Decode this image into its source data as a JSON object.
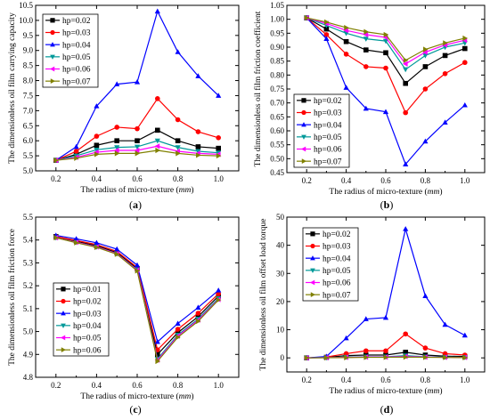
{
  "chart_data": [
    {
      "type": "line",
      "panel_label": "(a)",
      "xlabel": "The radius of micro-texture",
      "xunit": "mm",
      "ylabel": "The dimensionless oil film carrying capacity",
      "xlim": [
        0.1,
        1.1
      ],
      "ylim": [
        5.0,
        10.5
      ],
      "xticks": [
        0.2,
        0.4,
        0.6,
        0.8,
        1.0
      ],
      "yticks": [
        5.0,
        5.5,
        6.0,
        6.5,
        7.0,
        7.5,
        8.0,
        8.5,
        9.0,
        9.5,
        10.0,
        10.5
      ],
      "x": [
        0.2,
        0.3,
        0.4,
        0.5,
        0.6,
        0.7,
        0.8,
        0.9,
        1.0
      ],
      "legend_position": "top-left",
      "series": [
        {
          "name": "hp=0.02",
          "color": "#000000",
          "marker": "square",
          "values": [
            5.35,
            5.55,
            5.85,
            6.0,
            6.0,
            6.35,
            6.0,
            5.8,
            5.75
          ]
        },
        {
          "name": "hp=0.03",
          "color": "#ff0000",
          "marker": "circle",
          "values": [
            5.35,
            5.65,
            6.15,
            6.45,
            6.4,
            7.4,
            6.7,
            6.3,
            6.1
          ]
        },
        {
          "name": "hp=0.04",
          "color": "#0000ff",
          "marker": "triangle-up",
          "values": [
            5.35,
            5.8,
            7.15,
            7.88,
            7.95,
            10.3,
            8.95,
            8.15,
            7.5
          ]
        },
        {
          "name": "hp=0.05",
          "color": "#009999",
          "marker": "triangle-down",
          "values": [
            5.35,
            5.5,
            5.7,
            5.78,
            5.8,
            6.0,
            5.78,
            5.65,
            5.6
          ]
        },
        {
          "name": "hp=0.06",
          "color": "#ff00ff",
          "marker": "triangle-left",
          "values": [
            5.35,
            5.45,
            5.62,
            5.68,
            5.68,
            5.82,
            5.65,
            5.58,
            5.55
          ]
        },
        {
          "name": "hp=0.07",
          "color": "#808000",
          "marker": "triangle-right",
          "values": [
            5.35,
            5.42,
            5.55,
            5.58,
            5.58,
            5.68,
            5.58,
            5.52,
            5.5
          ]
        }
      ]
    },
    {
      "type": "line",
      "panel_label": "(b)",
      "xlabel": "The radius of micro-texture",
      "xunit": "mm",
      "ylabel": "The dimensionless oil film friction coefficient",
      "xlim": [
        0.1,
        1.1
      ],
      "ylim": [
        0.45,
        1.05
      ],
      "xticks": [
        0.2,
        0.4,
        0.6,
        0.8,
        1.0
      ],
      "yticks": [
        0.45,
        0.5,
        0.55,
        0.6,
        0.65,
        0.7,
        0.75,
        0.8,
        0.85,
        0.9,
        0.95,
        1.0,
        1.05
      ],
      "x": [
        0.2,
        0.3,
        0.4,
        0.5,
        0.6,
        0.7,
        0.8,
        0.9,
        1.0
      ],
      "legend_position": "bottom-left",
      "series": [
        {
          "name": "hp=0.02",
          "color": "#000000",
          "marker": "square",
          "values": [
            1.005,
            0.965,
            0.92,
            0.89,
            0.88,
            0.77,
            0.83,
            0.87,
            0.895
          ]
        },
        {
          "name": "hp=0.03",
          "color": "#ff0000",
          "marker": "circle",
          "values": [
            1.005,
            0.945,
            0.875,
            0.83,
            0.825,
            0.665,
            0.75,
            0.805,
            0.845
          ]
        },
        {
          "name": "hp=0.04",
          "color": "#0000ff",
          "marker": "triangle-up",
          "values": [
            1.005,
            0.93,
            0.755,
            0.68,
            0.668,
            0.48,
            0.562,
            0.63,
            0.692
          ]
        },
        {
          "name": "hp=0.05",
          "color": "#009999",
          "marker": "triangle-down",
          "values": [
            1.005,
            0.978,
            0.95,
            0.93,
            0.922,
            0.82,
            0.87,
            0.9,
            0.915
          ]
        },
        {
          "name": "hp=0.06",
          "color": "#ff00ff",
          "marker": "triangle-left",
          "values": [
            1.005,
            0.985,
            0.96,
            0.945,
            0.935,
            0.84,
            0.882,
            0.908,
            0.925
          ]
        },
        {
          "name": "hp=0.07",
          "color": "#808000",
          "marker": "triangle-right",
          "values": [
            1.005,
            0.99,
            0.97,
            0.955,
            0.945,
            0.853,
            0.892,
            0.915,
            0.932
          ]
        }
      ]
    },
    {
      "type": "line",
      "panel_label": "(c)",
      "xlabel": "The radius of micro-texture",
      "xunit": "mm",
      "ylabel": "The dimensionless oil film friction force",
      "xlim": [
        0.1,
        1.1
      ],
      "ylim": [
        4.8,
        5.5
      ],
      "xticks": [
        0.2,
        0.4,
        0.6,
        0.8,
        1.0
      ],
      "yticks": [
        4.8,
        4.9,
        5.0,
        5.1,
        5.2,
        5.3,
        5.4,
        5.5
      ],
      "x": [
        0.2,
        0.3,
        0.4,
        0.5,
        0.6,
        0.7,
        0.8,
        0.9,
        1.0
      ],
      "legend_position": "bottom-left",
      "series": [
        {
          "name": "hp=0.01",
          "color": "#000000",
          "marker": "square",
          "values": [
            5.415,
            5.395,
            5.375,
            5.345,
            5.275,
            4.9,
            4.995,
            5.065,
            5.155
          ]
        },
        {
          "name": "hp=0.02",
          "color": "#ff0000",
          "marker": "circle",
          "values": [
            5.415,
            5.398,
            5.38,
            5.35,
            5.28,
            4.92,
            5.01,
            5.08,
            5.165
          ]
        },
        {
          "name": "hp=0.03",
          "color": "#0000ff",
          "marker": "triangle-up",
          "values": [
            5.42,
            5.405,
            5.388,
            5.36,
            5.29,
            4.955,
            5.035,
            5.105,
            5.18
          ]
        },
        {
          "name": "hp=0.04",
          "color": "#009999",
          "marker": "triangle-down",
          "values": [
            5.41,
            5.39,
            5.37,
            5.34,
            5.27,
            4.88,
            4.985,
            5.055,
            5.145
          ]
        },
        {
          "name": "hp=0.05",
          "color": "#ff00ff",
          "marker": "triangle-left",
          "values": [
            5.41,
            5.39,
            5.37,
            5.34,
            5.268,
            4.875,
            4.98,
            5.05,
            5.14
          ]
        },
        {
          "name": "hp=0.06",
          "color": "#808000",
          "marker": "triangle-right",
          "values": [
            5.41,
            5.388,
            5.368,
            5.338,
            5.265,
            4.87,
            4.975,
            5.045,
            5.138
          ]
        }
      ]
    },
    {
      "type": "line",
      "panel_label": "(d)",
      "xlabel": "The radius of micro-texture",
      "xunit": "mm",
      "ylabel": "The dimensionless oil film offset load torque",
      "xlim": [
        0.1,
        1.1
      ],
      "ylim": [
        -5,
        50
      ],
      "xticks": [
        0.2,
        0.4,
        0.6,
        0.8,
        1.0
      ],
      "yticks": [
        0,
        10,
        20,
        30,
        40,
        50
      ],
      "x": [
        0.2,
        0.3,
        0.4,
        0.5,
        0.6,
        0.7,
        0.8,
        0.9,
        1.0
      ],
      "legend_position": "top-left",
      "series": [
        {
          "name": "hp=0.02",
          "color": "#000000",
          "marker": "square",
          "values": [
            0,
            0.2,
            0.8,
            1.0,
            1.0,
            2.0,
            1.0,
            0.6,
            0.5
          ]
        },
        {
          "name": "hp=0.03",
          "color": "#ff0000",
          "marker": "circle",
          "values": [
            0,
            0.3,
            1.5,
            2.5,
            2.5,
            8.5,
            3.5,
            1.5,
            1.0
          ]
        },
        {
          "name": "hp=0.04",
          "color": "#0000ff",
          "marker": "triangle-up",
          "values": [
            0,
            0.5,
            7.0,
            13.8,
            14.3,
            45.8,
            22.0,
            11.8,
            8.0
          ]
        },
        {
          "name": "hp=0.05",
          "color": "#009999",
          "marker": "triangle-down",
          "values": [
            0,
            0.1,
            0.3,
            0.4,
            0.4,
            0.8,
            0.4,
            0.3,
            0.2
          ]
        },
        {
          "name": "hp=0.06",
          "color": "#ff00ff",
          "marker": "triangle-left",
          "values": [
            0,
            0.1,
            0.2,
            0.3,
            0.3,
            0.5,
            0.3,
            0.2,
            0.15
          ]
        },
        {
          "name": "hp=0.07",
          "color": "#808000",
          "marker": "triangle-right",
          "values": [
            0,
            0.05,
            0.1,
            0.2,
            0.2,
            0.3,
            0.2,
            0.15,
            0.1
          ]
        }
      ]
    }
  ]
}
